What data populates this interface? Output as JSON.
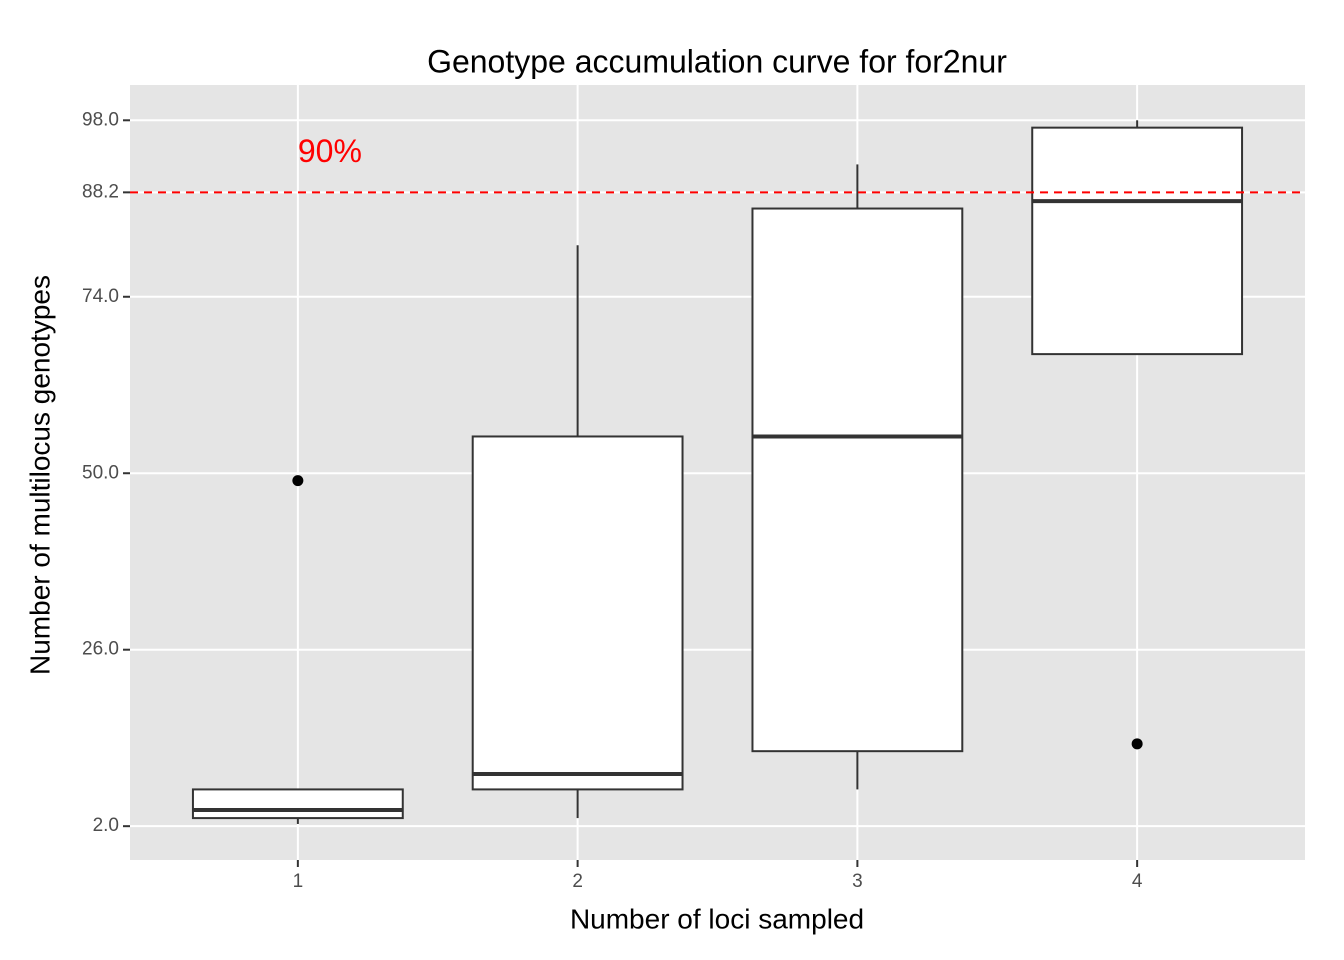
{
  "chart_data": {
    "type": "box",
    "title": "Genotype accumulation curve for for2nur",
    "x_label": "Number of loci sampled",
    "y_label": "Number of multilocus genotypes",
    "categories": [
      "1",
      "2",
      "3",
      "4"
    ],
    "whisker_low": [
      2.3,
      3.1,
      7.0,
      66.2
    ],
    "q1": [
      3.1,
      7.0,
      12.2,
      66.2
    ],
    "median": [
      4.2,
      9.1,
      55.0,
      87.0
    ],
    "q3": [
      7.0,
      55.0,
      86.0,
      97.0
    ],
    "whisker_high": [
      7.0,
      81.0,
      92.0,
      98.0
    ],
    "outliers": [
      [
        49.0
      ],
      [],
      [],
      [
        13.2
      ]
    ],
    "box_color": "#ffffff",
    "line_color": "#333333",
    "ylim": [
      -2.6,
      102.8
    ],
    "yticks": [
      {
        "value": 2.0,
        "label": "2.0"
      },
      {
        "value": 26.0,
        "label": "26.0"
      },
      {
        "value": 50.0,
        "label": "50.0"
      },
      {
        "value": 74.0,
        "label": "74.0"
      },
      {
        "value": 88.2,
        "label": "88.2"
      },
      {
        "value": 98.0,
        "label": "98.0"
      }
    ],
    "grid": true,
    "reference_line": {
      "value": 88.2,
      "color": "#ff0000",
      "style": "dashed"
    },
    "annotation": {
      "text": "90%",
      "x": 1,
      "y": 93.5,
      "color": "#ff0000"
    }
  }
}
